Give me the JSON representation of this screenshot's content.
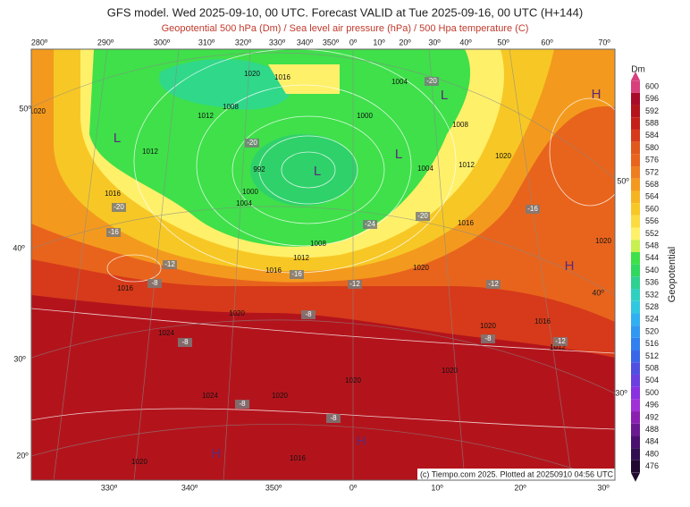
{
  "header": {
    "title": "GFS model. Wed 2025-09-10, 00 UTC. Forecast VALID at Tue 2025-09-16, 00 UTC (H+144)",
    "subtitle": "Geopotential 500 hPa (Dm) / Sea level air pressure (hPa) / 500 Hpa temperature (C)"
  },
  "map": {
    "top_longitudes": [
      "280º",
      "290º",
      "300º",
      "310º",
      "320º",
      "330º",
      "340º",
      "350º",
      "0º",
      "10º",
      "20º",
      "30º",
      "40º",
      "50º",
      "60º",
      "70º"
    ],
    "bottom_longitudes": [
      "330º",
      "340º",
      "350º",
      "0º",
      "10º",
      "20º",
      "30º"
    ],
    "left_latitudes": [
      "50º",
      "40º",
      "30º",
      "20º"
    ],
    "right_latitudes": [
      "50º",
      "40º",
      "30º"
    ],
    "pressure_centers": [
      "L",
      "L",
      "L",
      "L",
      "H",
      "H",
      "H",
      "H"
    ],
    "isobar_labels": [
      "1020",
      "1016",
      "1012",
      "1008",
      "1000",
      "1004",
      "1012",
      "992",
      "1000",
      "1004",
      "1008",
      "1012",
      "1016",
      "1016",
      "1016",
      "1020",
      "1020",
      "1024",
      "1024",
      "1020",
      "1020",
      "1020",
      "1020",
      "1016",
      "1012",
      "1004",
      "1008",
      "1020",
      "1020",
      "1016",
      "1012",
      "1020",
      "1016",
      "1020"
    ],
    "temperature_labels": [
      "-20",
      "-20",
      "-16",
      "-12",
      "-8",
      "-8",
      "-8",
      "-8",
      "-8",
      "-12",
      "-16",
      "-24",
      "-20",
      "-20",
      "-16",
      "-12",
      "-12",
      "-8"
    ],
    "credit": "(c) Tiempo.com 2025. Plotted at 20250910 04:56 UTC"
  },
  "colorbar": {
    "unit": "Dm",
    "label": "Geopotential",
    "ticks": [
      600,
      596,
      592,
      588,
      584,
      580,
      576,
      572,
      568,
      564,
      560,
      556,
      552,
      548,
      544,
      540,
      536,
      532,
      528,
      524,
      520,
      516,
      512,
      508,
      504,
      500,
      496,
      492,
      488,
      484,
      480,
      476
    ]
  }
}
